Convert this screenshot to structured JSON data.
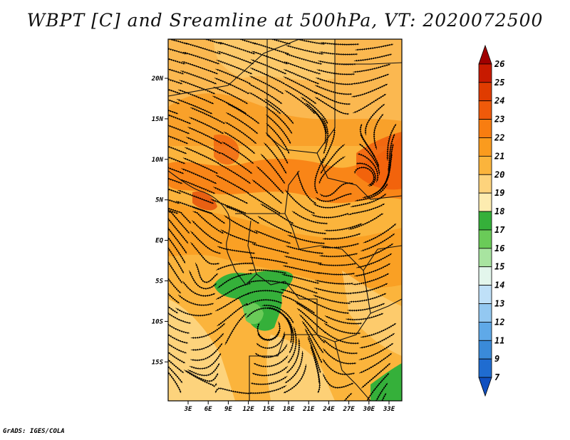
{
  "title": "WBPT [C] and Sreamline at 500hPa, VT: 2020072500",
  "credit": "GrADS: IGES/COLA",
  "map": {
    "lat_ticks": [
      "20N",
      "15N",
      "10N",
      "5N",
      "EQ",
      "5S",
      "10S",
      "15S"
    ],
    "lon_ticks": [
      "3E",
      "6E",
      "9E",
      "12E",
      "15E",
      "18E",
      "21E",
      "24E",
      "27E",
      "30E",
      "33E"
    ]
  },
  "colorbar": {
    "labels": [
      "26",
      "25",
      "24",
      "23",
      "22",
      "21",
      "20",
      "19",
      "18",
      "17",
      "16",
      "15",
      "14",
      "13",
      "12",
      "11",
      "9",
      "7"
    ],
    "colors": [
      "#a00000",
      "#c81a00",
      "#e03c00",
      "#f05a0a",
      "#f87d10",
      "#fa9b1e",
      "#fbb43c",
      "#fdd37c",
      "#fdecb0",
      "#35b03a",
      "#6acb58",
      "#a8e4a0",
      "#e3f6ec",
      "#bfe0f8",
      "#93c8f1",
      "#5fa9e8",
      "#3a8ad9",
      "#1f6cd0",
      "#1050c0"
    ]
  },
  "colors": {
    "frame": "#000000",
    "background": "#ffffff"
  }
}
